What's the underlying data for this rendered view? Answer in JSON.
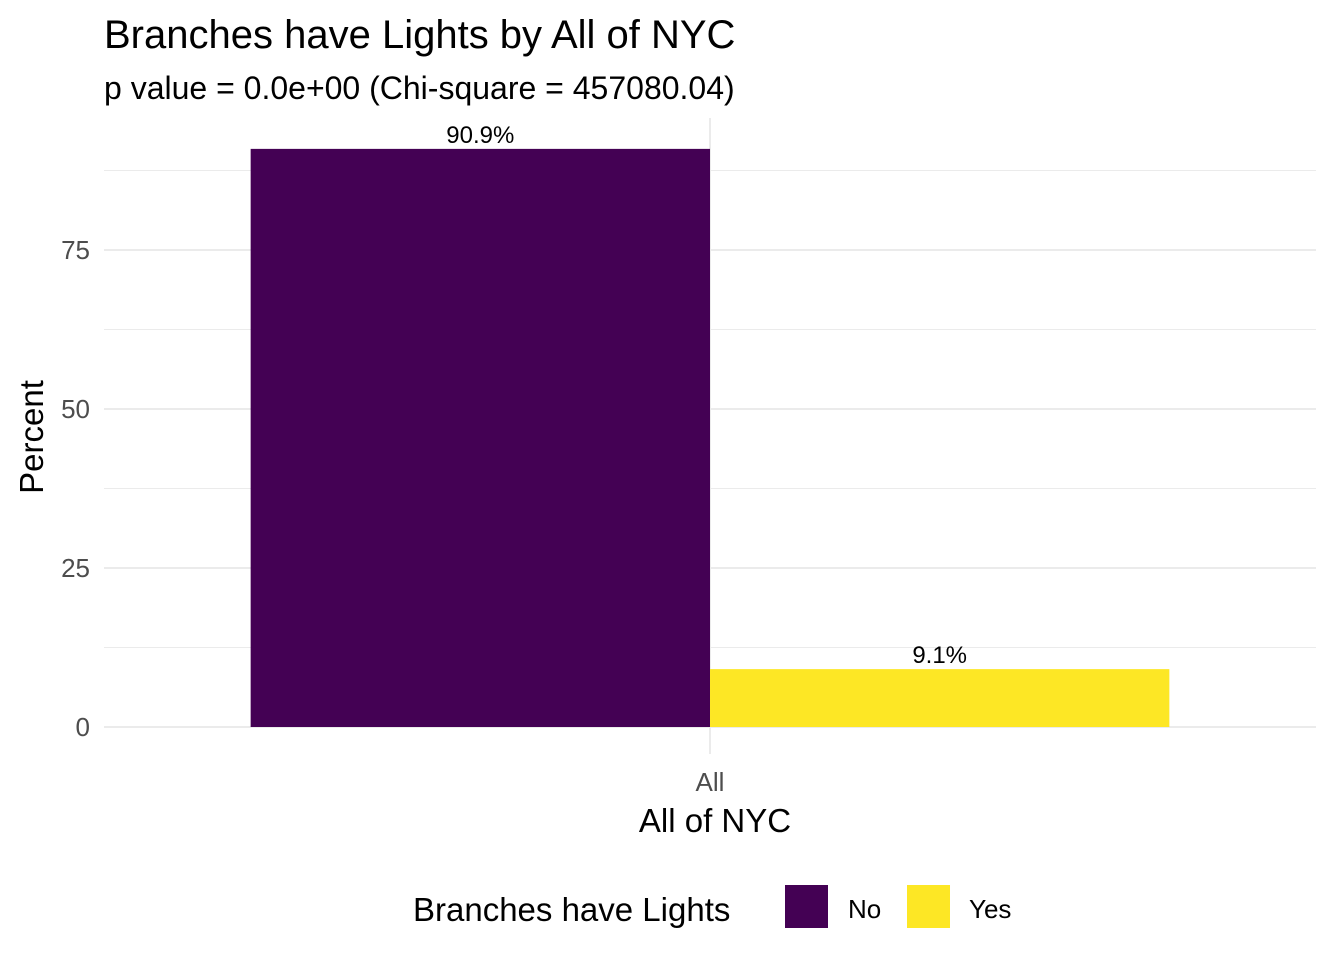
{
  "chart_data": {
    "type": "bar",
    "title": "Branches have Lights by All of NYC",
    "subtitle": "p value = 0.0e+00 (Chi-square = 457080.04)",
    "xlabel": "All of NYC",
    "ylabel": "Percent",
    "categories": [
      "All"
    ],
    "series": [
      {
        "name": "No",
        "color": "#440154",
        "values": [
          90.9
        ],
        "label": "90.9%"
      },
      {
        "name": "Yes",
        "color": "#FDE725",
        "values": [
          9.1
        ],
        "label": "9.1%"
      }
    ],
    "ylim": [
      0,
      95
    ],
    "yticks": [
      0,
      25,
      50,
      75
    ],
    "grid": true,
    "legend": {
      "title": "Branches have Lights",
      "position": "bottom",
      "items": [
        "No",
        "Yes"
      ]
    }
  }
}
